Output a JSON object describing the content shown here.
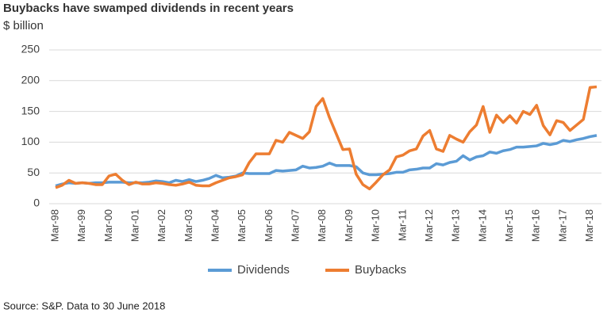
{
  "chart_data": {
    "type": "line",
    "title": "Buybacks have swamped dividends in recent years",
    "subtitle": "$ billion",
    "source": "Source: S&P. Data to 30 June 2018",
    "categories": [
      "Mar-98",
      null,
      null,
      null,
      "Mar-99",
      null,
      null,
      null,
      "Mar-00",
      null,
      null,
      null,
      "Mar-01",
      null,
      null,
      null,
      "Mar-02",
      null,
      null,
      null,
      "Mar-03",
      null,
      null,
      null,
      "Mar-04",
      null,
      null,
      null,
      "Mar-05",
      null,
      null,
      null,
      "Mar-06",
      null,
      null,
      null,
      "Mar-07",
      null,
      null,
      null,
      "Mar-08",
      null,
      null,
      null,
      "Mar-09",
      null,
      null,
      null,
      "Mar-10",
      null,
      null,
      null,
      "Mar-11",
      null,
      null,
      null,
      "Mar-12",
      null,
      null,
      null,
      "Mar-13",
      null,
      null,
      null,
      "Mar-14",
      null,
      null,
      null,
      "Mar-15",
      null,
      null,
      null,
      "Mar-16",
      null,
      null,
      null,
      "Mar-17",
      null,
      null,
      null,
      "Mar-18",
      null
    ],
    "series": [
      {
        "name": "Dividends",
        "color": "#5b9bd5",
        "values": [
          29,
          32,
          34,
          33,
          34,
          33,
          34,
          34,
          35,
          35,
          35,
          34,
          34,
          34,
          35,
          37,
          36,
          34,
          38,
          36,
          39,
          36,
          38,
          41,
          46,
          42,
          43,
          45,
          50,
          49,
          49,
          49,
          49,
          54,
          53,
          54,
          55,
          61,
          58,
          59,
          61,
          66,
          62,
          62,
          62,
          60,
          50,
          47,
          47,
          48,
          49,
          51,
          51,
          55,
          56,
          58,
          58,
          65,
          63,
          67,
          69,
          78,
          71,
          76,
          78,
          84,
          82,
          86,
          88,
          92,
          92,
          93,
          94,
          98,
          96,
          98,
          103,
          101,
          104,
          106,
          109,
          111
        ]
      },
      {
        "name": "Buybacks",
        "color": "#ed7d31",
        "values": [
          26,
          30,
          38,
          33,
          34,
          33,
          31,
          31,
          45,
          48,
          38,
          31,
          35,
          32,
          32,
          34,
          33,
          31,
          30,
          32,
          35,
          30,
          29,
          29,
          34,
          38,
          42,
          44,
          47,
          67,
          81,
          81,
          81,
          103,
          100,
          116,
          111,
          106,
          117,
          158,
          171,
          140,
          114,
          88,
          89,
          48,
          31,
          24,
          35,
          47,
          55,
          76,
          79,
          86,
          89,
          110,
          119,
          89,
          85,
          111,
          105,
          100,
          117,
          128,
          158,
          116,
          144,
          132,
          143,
          131,
          150,
          145,
          160,
          127,
          112,
          135,
          132,
          119,
          128,
          137,
          189,
          190
        ]
      }
    ],
    "ylim": [
      0,
      250
    ],
    "yticks": [
      0,
      50,
      100,
      150,
      200,
      250
    ],
    "grid": true,
    "legend": "bottom"
  }
}
